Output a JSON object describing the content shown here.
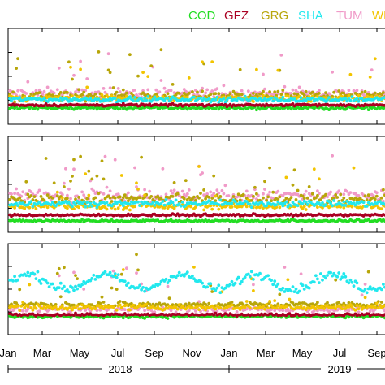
{
  "chart_data": {
    "type": "scatter",
    "legend_position": "top",
    "legend": [
      {
        "name": "COD",
        "color": "#22dd22"
      },
      {
        "name": "GFZ",
        "color": "#aa0022"
      },
      {
        "name": "GRG",
        "color": "#b8a60a"
      },
      {
        "name": "SHA",
        "color": "#22e8ee"
      },
      {
        "name": "TUM",
        "color": "#f09ac8"
      },
      {
        "name": "WHU",
        "color": "#f2c400"
      }
    ],
    "x_tick_labels": [
      "Jan",
      "Mar",
      "May",
      "Jul",
      "Sep",
      "Nov",
      "Jan",
      "Mar",
      "May",
      "Jul",
      "Sep"
    ],
    "year_labels": [
      "2018",
      "2019"
    ],
    "panels": [
      {
        "series": [
          {
            "name": "COD",
            "base": 0.17,
            "spread": 0.025
          },
          {
            "name": "GFZ",
            "base": 0.2,
            "spread": 0.02
          },
          {
            "name": "GRG",
            "base": 0.3,
            "spread": 0.08
          },
          {
            "name": "SHA",
            "base": 0.26,
            "spread": 0.04
          },
          {
            "name": "TUM",
            "base": 0.32,
            "spread": 0.1
          },
          {
            "name": "WHU",
            "base": 0.27,
            "spread": 0.05
          }
        ]
      },
      {
        "series": [
          {
            "name": "COD",
            "base": 0.12,
            "spread": 0.02
          },
          {
            "name": "GFZ",
            "base": 0.18,
            "spread": 0.02
          },
          {
            "name": "GRG",
            "base": 0.35,
            "spread": 0.09
          },
          {
            "name": "SHA",
            "base": 0.3,
            "spread": 0.05
          },
          {
            "name": "TUM",
            "base": 0.38,
            "spread": 0.12
          },
          {
            "name": "WHU",
            "base": 0.27,
            "spread": 0.05
          }
        ]
      },
      {
        "series": [
          {
            "name": "COD",
            "base": 0.2,
            "spread": 0.03
          },
          {
            "name": "GFZ",
            "base": 0.22,
            "spread": 0.02
          },
          {
            "name": "GRG",
            "base": 0.33,
            "spread": 0.05
          },
          {
            "name": "SHA",
            "base": 0.58,
            "spread": 0.08
          },
          {
            "name": "TUM",
            "base": 0.28,
            "spread": 0.05
          },
          {
            "name": "WHU",
            "base": 0.3,
            "spread": 0.05
          }
        ]
      }
    ]
  }
}
